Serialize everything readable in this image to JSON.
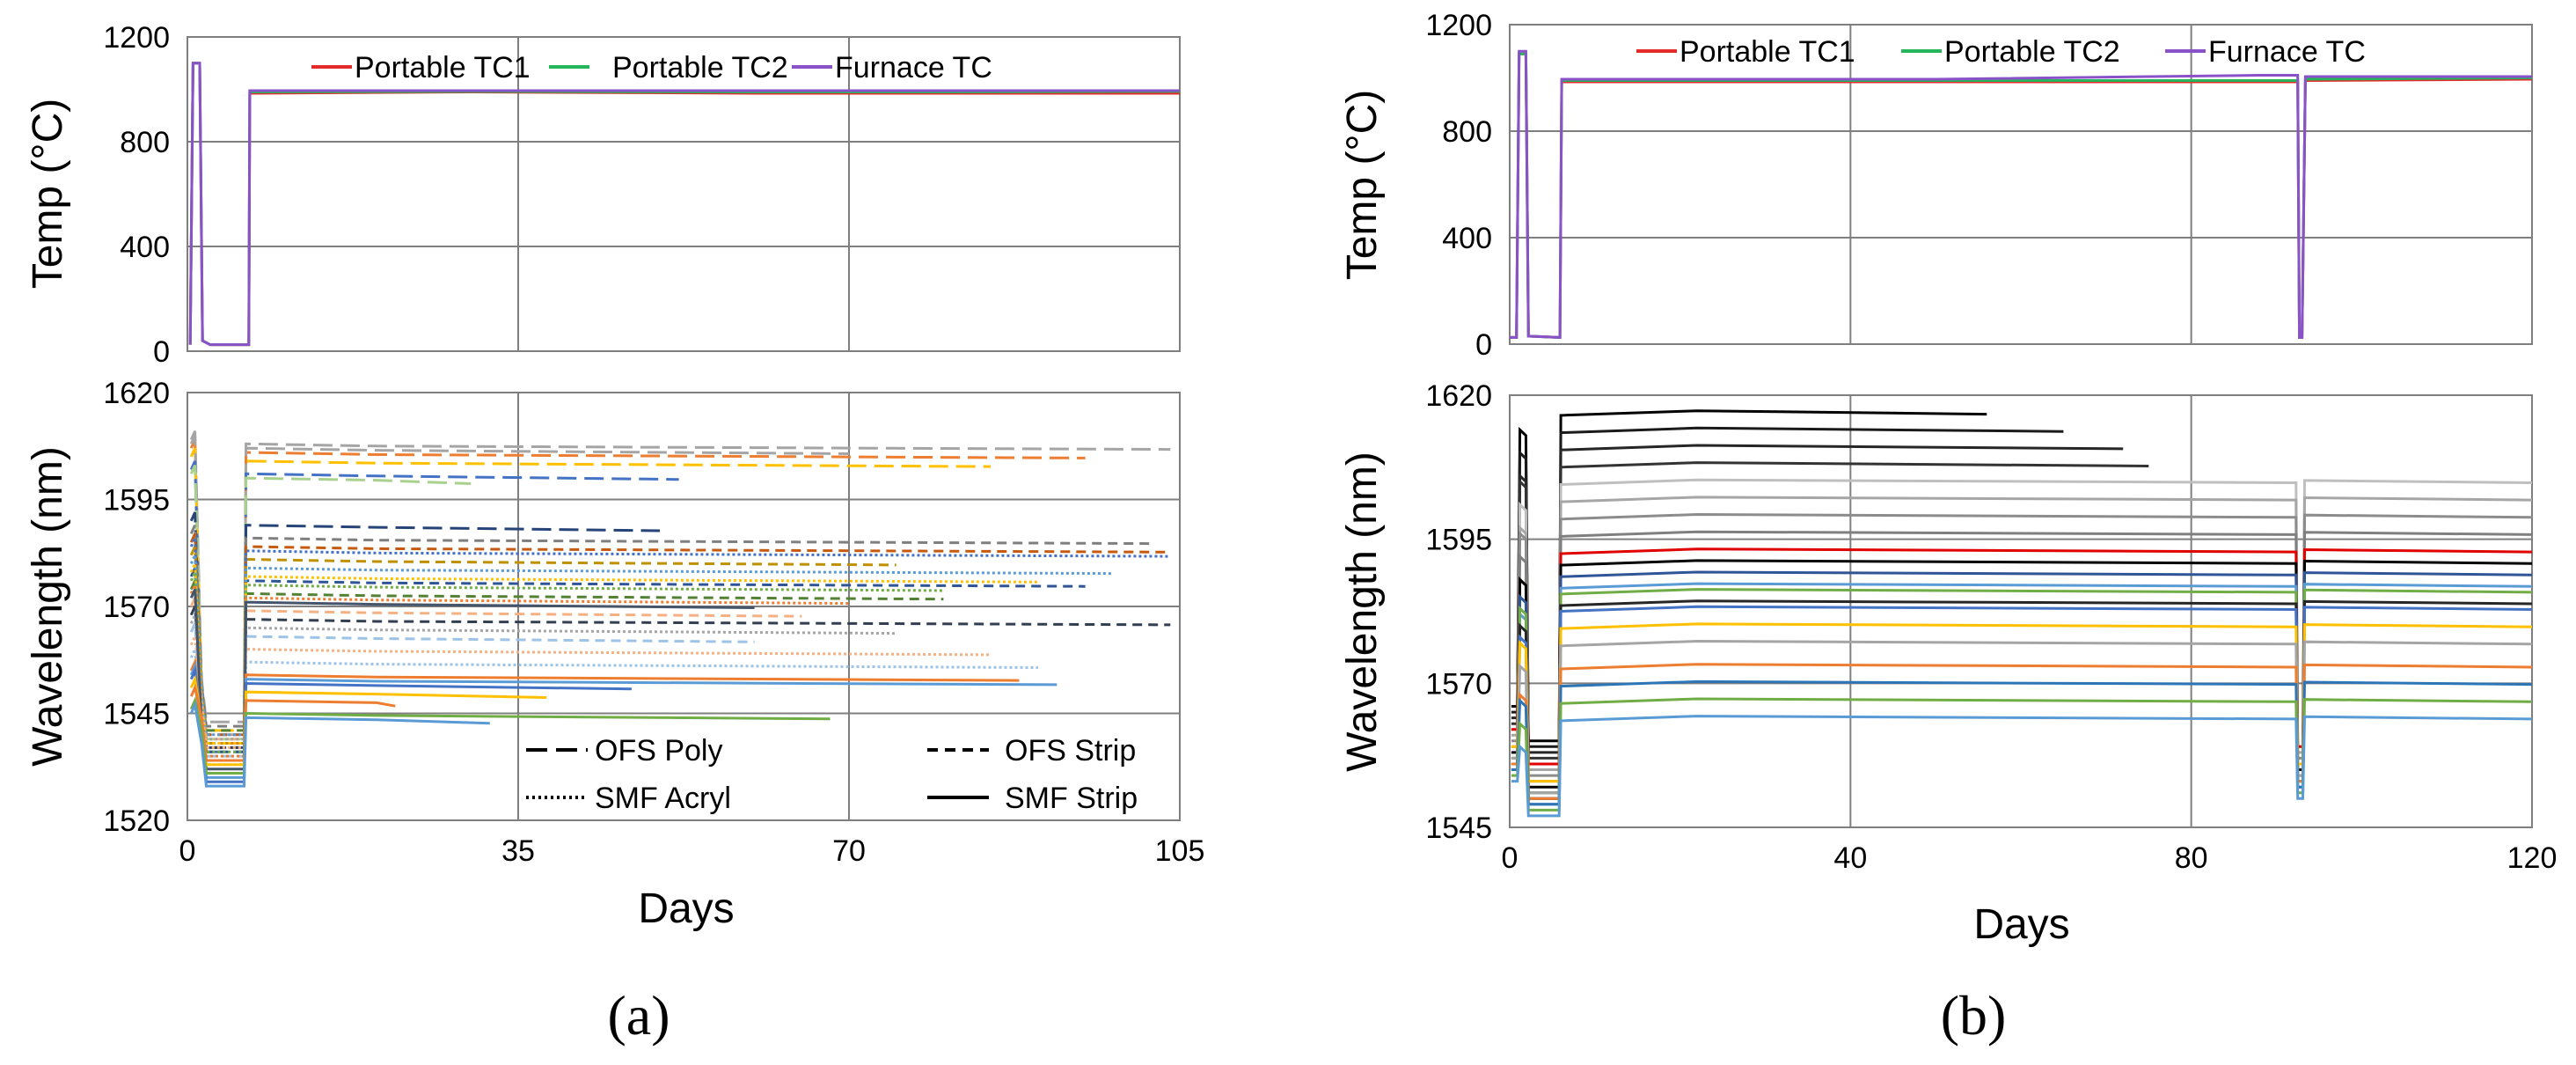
{
  "figure": {
    "panel_a_label": "(a)",
    "panel_b_label": "(b)"
  },
  "chart_data": [
    {
      "id": "a_temp",
      "type": "line",
      "panel": "(a)",
      "xlabel": "",
      "ylabel": "Temp (°C)",
      "xlim": [
        0,
        105
      ],
      "ylim": [
        0,
        1200
      ],
      "xticks": [
        0,
        35,
        70,
        105
      ],
      "yticks": [
        0,
        400,
        800,
        1200
      ],
      "ytick_labels": [
        "0",
        "400",
        "800",
        "1200"
      ],
      "show_x_tick_labels": false,
      "legend_position": "top",
      "series": [
        {
          "name": "Portable TC1",
          "color": "#e32b2b",
          "x": [
            0.3,
            0.6,
            1.3,
            1.6,
            2.4,
            6.5,
            6.6,
            30,
            60,
            80,
            105
          ],
          "y": [
            25,
            1100,
            1100,
            40,
            25,
            25,
            985,
            990,
            985,
            985,
            985
          ]
        },
        {
          "name": "Portable TC2",
          "color": "#25b55b",
          "x": [
            0.3,
            0.6,
            1.3,
            1.6,
            2.4,
            6.5,
            6.6,
            30,
            60,
            80,
            105
          ],
          "y": [
            25,
            1100,
            1100,
            40,
            25,
            25,
            990,
            992,
            990,
            990,
            992
          ]
        },
        {
          "name": "Furnace TC",
          "color": "#8a52c8",
          "x": [
            0.3,
            0.6,
            1.3,
            1.6,
            2.4,
            6.5,
            6.6,
            30,
            60,
            80,
            105
          ],
          "y": [
            25,
            1100,
            1100,
            40,
            25,
            25,
            995,
            995,
            995,
            995,
            995
          ]
        }
      ]
    },
    {
      "id": "a_wave",
      "type": "line",
      "panel": "(a)",
      "xlabel": "Days",
      "ylabel": "Wavelength (nm)",
      "xlim": [
        0,
        105
      ],
      "ylim": [
        1520,
        1620
      ],
      "xticks": [
        0,
        35,
        70,
        105
      ],
      "xtick_labels": [
        "0",
        "35",
        "70",
        "105"
      ],
      "yticks": [
        1520,
        1545,
        1570,
        1595,
        1620
      ],
      "ytick_labels": [
        "1520",
        "1545",
        "1570",
        "1595",
        "1620"
      ],
      "legend_position": "bottom",
      "legend": [
        {
          "name": "OFS Poly",
          "style": "long-dash"
        },
        {
          "name": "OFS Strip",
          "style": "dash"
        },
        {
          "name": "SMF Acryl",
          "style": "dotted"
        },
        {
          "name": "SMF Strip",
          "style": "solid"
        }
      ],
      "traces": [
        {
          "style": "long-dash",
          "color": "#a5a5a5",
          "base": 1540,
          "level": 1607,
          "end": 104
        },
        {
          "style": "long-dash",
          "color": "#ed7d31",
          "base": 1538,
          "level": 1605,
          "end": 95
        },
        {
          "style": "long-dash",
          "color": "#ffc000",
          "base": 1541,
          "level": 1603,
          "end": 85
        },
        {
          "style": "long-dash",
          "color": "#a5a5a5",
          "base": 1543,
          "level": 1606,
          "end": 70
        },
        {
          "style": "long-dash",
          "color": "#4472c4",
          "base": 1536,
          "level": 1600,
          "end": 52
        },
        {
          "style": "long-dash",
          "color": "#a9d18e",
          "base": 1539,
          "level": 1599,
          "end": 30
        },
        {
          "style": "long-dash",
          "color": "#264478",
          "base": 1537,
          "level": 1588,
          "end": 50
        },
        {
          "style": "dash",
          "color": "#7f7f7f",
          "base": 1542,
          "level": 1585,
          "end": 102
        },
        {
          "style": "dash",
          "color": "#c55a11",
          "base": 1540,
          "level": 1583,
          "end": 104
        },
        {
          "style": "dash",
          "color": "#bf9000",
          "base": 1538,
          "level": 1580,
          "end": 75
        },
        {
          "style": "dash",
          "color": "#2f5597",
          "base": 1536,
          "level": 1575,
          "end": 95
        },
        {
          "style": "dash",
          "color": "#548235",
          "base": 1541,
          "level": 1572,
          "end": 80
        },
        {
          "style": "dash",
          "color": "#f4b183",
          "base": 1539,
          "level": 1568,
          "end": 65
        },
        {
          "style": "dash",
          "color": "#333f50",
          "base": 1537,
          "level": 1566,
          "end": 104
        },
        {
          "style": "dash",
          "color": "#9dc3e6",
          "base": 1535,
          "level": 1562,
          "end": 60
        },
        {
          "style": "dotted",
          "color": "#4472c4",
          "base": 1534,
          "level": 1582,
          "end": 104
        },
        {
          "style": "dotted",
          "color": "#5b9bd5",
          "base": 1540,
          "level": 1578,
          "end": 98
        },
        {
          "style": "dotted",
          "color": "#ffc000",
          "base": 1538,
          "level": 1576,
          "end": 90
        },
        {
          "style": "dotted",
          "color": "#70ad47",
          "base": 1536,
          "level": 1574,
          "end": 80
        },
        {
          "style": "dotted",
          "color": "#ed7d31",
          "base": 1535,
          "level": 1571,
          "end": 70
        },
        {
          "style": "dotted",
          "color": "#a5a5a5",
          "base": 1539,
          "level": 1564,
          "end": 75
        },
        {
          "style": "dotted",
          "color": "#f4b183",
          "base": 1537,
          "level": 1559,
          "end": 85
        },
        {
          "style": "dotted",
          "color": "#9dc3e6",
          "base": 1533,
          "level": 1556,
          "end": 90
        },
        {
          "style": "solid",
          "color": "#44546a",
          "base": 1532,
          "level": 1570,
          "end": 60
        },
        {
          "style": "solid",
          "color": "#ed7d31",
          "base": 1531,
          "level": 1553,
          "end": 88
        },
        {
          "style": "solid",
          "color": "#5b9bd5",
          "base": 1530,
          "level": 1552,
          "end": 92
        },
        {
          "style": "solid",
          "color": "#4472c4",
          "base": 1529,
          "level": 1551,
          "end": 47
        },
        {
          "style": "solid",
          "color": "#ffc000",
          "base": 1533,
          "level": 1549,
          "end": 38
        },
        {
          "style": "solid",
          "color": "#ed7d31",
          "base": 1534,
          "level": 1547,
          "end": 22
        },
        {
          "style": "solid",
          "color": "#70ad47",
          "base": 1531,
          "level": 1544,
          "end": 68
        },
        {
          "style": "solid",
          "color": "#5b9bd5",
          "base": 1528,
          "level": 1543,
          "end": 32
        }
      ]
    },
    {
      "id": "b_temp",
      "type": "line",
      "panel": "(b)",
      "xlabel": "",
      "ylabel": "Temp (°C)",
      "xlim": [
        0,
        120
      ],
      "ylim": [
        0,
        1200
      ],
      "xticks": [
        0,
        40,
        80,
        120
      ],
      "yticks": [
        0,
        400,
        800,
        1200
      ],
      "ytick_labels": [
        "0",
        "400",
        "800",
        "1200"
      ],
      "show_x_tick_labels": false,
      "legend_position": "top",
      "series": [
        {
          "name": "Portable TC1",
          "color": "#e32b2b",
          "x": [
            0,
            0.8,
            1.1,
            1.9,
            2.2,
            5.9,
            6.1,
            50,
            88,
            92.5,
            92.7,
            93,
            93.4,
            120
          ],
          "y": [
            25,
            25,
            1090,
            1090,
            30,
            25,
            985,
            985,
            985,
            985,
            25,
            25,
            990,
            995
          ]
        },
        {
          "name": "Portable TC2",
          "color": "#25b55b",
          "x": [
            0,
            0.8,
            1.1,
            1.9,
            2.2,
            5.9,
            6.1,
            50,
            88,
            92.5,
            92.7,
            93,
            93.4,
            120
          ],
          "y": [
            25,
            25,
            1090,
            1090,
            30,
            25,
            990,
            990,
            990,
            990,
            25,
            25,
            995,
            1000
          ]
        },
        {
          "name": "Furnace TC",
          "color": "#8a52c8",
          "x": [
            0,
            0.8,
            1.1,
            1.9,
            2.2,
            5.9,
            6.1,
            50,
            88,
            92.5,
            92.7,
            93,
            93.4,
            120
          ],
          "y": [
            25,
            25,
            1100,
            1100,
            30,
            25,
            995,
            995,
            1010,
            1010,
            25,
            25,
            1005,
            1005
          ]
        }
      ]
    },
    {
      "id": "b_wave",
      "type": "line",
      "panel": "(b)",
      "xlabel": "Days",
      "ylabel": "Wavelength (nm)",
      "xlim": [
        0,
        120
      ],
      "ylim": [
        1545,
        1620
      ],
      "xticks": [
        0,
        40,
        80,
        120
      ],
      "xtick_labels": [
        "0",
        "40",
        "80",
        "120"
      ],
      "yticks": [
        1545,
        1570,
        1595,
        1620
      ],
      "ytick_labels": [
        "1545",
        "1570",
        "1595",
        "1620"
      ],
      "traces": [
        {
          "color": "#000000",
          "base": 1560,
          "level": 1617,
          "end": 56
        },
        {
          "color": "#1a1a1a",
          "base": 1559,
          "level": 1614,
          "end": 65
        },
        {
          "color": "#262626",
          "base": 1558,
          "level": 1611,
          "end": 72
        },
        {
          "color": "#333333",
          "base": 1557,
          "level": 1608,
          "end": 75
        },
        {
          "color": "#bfbfbf",
          "base": 1556,
          "level": 1605,
          "end": 120
        },
        {
          "color": "#a6a6a6",
          "base": 1555,
          "level": 1602,
          "end": 120
        },
        {
          "color": "#8c8c8c",
          "base": 1554,
          "level": 1599,
          "end": 120
        },
        {
          "color": "#7f7f7f",
          "base": 1553,
          "level": 1596,
          "end": 120
        },
        {
          "color": "#e00000",
          "base": 1556,
          "level": 1593,
          "end": 120
        },
        {
          "color": "#000000",
          "base": 1552,
          "level": 1591,
          "end": 120
        },
        {
          "color": "#2f5597",
          "base": 1551,
          "level": 1589,
          "end": 120
        },
        {
          "color": "#5b9bd5",
          "base": 1550,
          "level": 1587,
          "end": 120
        },
        {
          "color": "#70ad47",
          "base": 1551,
          "level": 1586,
          "end": 120
        },
        {
          "color": "#262626",
          "base": 1550,
          "level": 1584,
          "end": 120
        },
        {
          "color": "#4472c4",
          "base": 1549,
          "level": 1583,
          "end": 120
        },
        {
          "color": "#ffc000",
          "base": 1553,
          "level": 1580,
          "end": 120
        },
        {
          "color": "#a5a5a5",
          "base": 1551,
          "level": 1577,
          "end": 120
        },
        {
          "color": "#ed7d31",
          "base": 1550,
          "level": 1573,
          "end": 120
        },
        {
          "color": "#2e75b6",
          "base": 1549,
          "level": 1570,
          "end": 120
        },
        {
          "color": "#70ad47",
          "base": 1548,
          "level": 1567,
          "end": 120
        },
        {
          "color": "#5b9bd5",
          "base": 1547,
          "level": 1564,
          "end": 120
        }
      ]
    }
  ]
}
